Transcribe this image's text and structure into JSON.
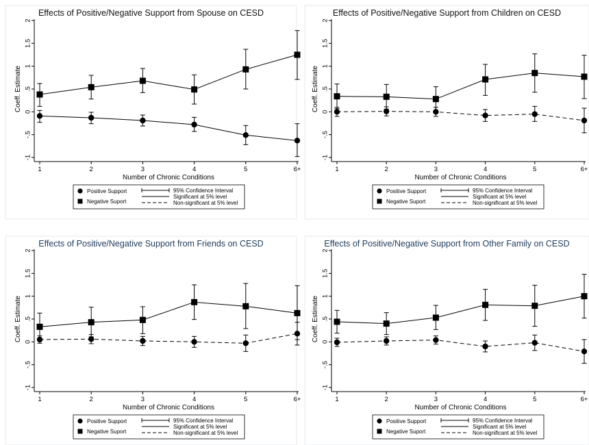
{
  "chart_data": [
    {
      "type": "line",
      "title": "Effects of Positive/Negative Support from Spouse on CESD",
      "title_color": "#111111",
      "xlabel": "Number of Chronic Conditions",
      "ylabel": "Coeff. Estimate",
      "categories": [
        "1",
        "2",
        "3",
        "4",
        "5",
        "6+"
      ],
      "ylim": [
        -1,
        2
      ],
      "yticks": [
        {
          "v": -1,
          "label": "-1"
        },
        {
          "v": -0.5,
          "label": "-.5"
        },
        {
          "v": 0,
          "label": "0"
        },
        {
          "v": 0.5,
          "label": ".5"
        },
        {
          "v": 1,
          "label": "1"
        },
        {
          "v": 1.5,
          "label": "1.5"
        },
        {
          "v": 2,
          "label": "2"
        }
      ],
      "series": [
        {
          "name": "Positive Support",
          "marker": "circle",
          "style": "solid",
          "values": [
            -0.09,
            -0.13,
            -0.19,
            -0.28,
            -0.51,
            -0.63
          ],
          "ci_low": [
            -0.23,
            -0.26,
            -0.31,
            -0.43,
            -0.72,
            -0.98
          ],
          "ci_high": [
            0.03,
            -0.01,
            -0.07,
            -0.12,
            -0.3,
            -0.26
          ]
        },
        {
          "name": "Negative Suport",
          "marker": "square",
          "style": "solid",
          "values": [
            0.38,
            0.54,
            0.68,
            0.49,
            0.93,
            1.25
          ],
          "ci_low": [
            0.12,
            0.28,
            0.42,
            0.17,
            0.5,
            0.71
          ],
          "ci_high": [
            0.62,
            0.8,
            0.95,
            0.81,
            1.37,
            1.78
          ]
        }
      ]
    },
    {
      "type": "line",
      "title": "Effects of Positive/Negative Support from Children on CESD",
      "title_color": "#111111",
      "xlabel": "Number of Chronic Conditions",
      "ylabel": "Coeff. Estimate",
      "categories": [
        "1",
        "2",
        "3",
        "4",
        "5",
        "6+"
      ],
      "ylim": [
        -1,
        2
      ],
      "yticks": [
        {
          "v": -1,
          "label": "-1"
        },
        {
          "v": -0.5,
          "label": "-.5"
        },
        {
          "v": 0,
          "label": "0"
        },
        {
          "v": 0.5,
          "label": ".5"
        },
        {
          "v": 1,
          "label": "1"
        },
        {
          "v": 1.5,
          "label": "1.5"
        },
        {
          "v": 2,
          "label": "2"
        }
      ],
      "series": [
        {
          "name": "Positive Support",
          "marker": "circle",
          "style": "dashed",
          "values": [
            0.0,
            0.01,
            0.0,
            -0.08,
            -0.05,
            -0.19
          ],
          "ci_low": [
            -0.1,
            -0.09,
            -0.1,
            -0.21,
            -0.21,
            -0.46
          ],
          "ci_high": [
            0.1,
            0.11,
            0.1,
            0.05,
            0.12,
            0.08
          ]
        },
        {
          "name": "Negative Suport",
          "marker": "square",
          "style": "solid",
          "values": [
            0.34,
            0.33,
            0.28,
            0.71,
            0.85,
            0.77
          ],
          "ci_low": [
            0.07,
            0.06,
            0.02,
            0.36,
            0.43,
            0.29
          ],
          "ci_high": [
            0.61,
            0.6,
            0.55,
            1.04,
            1.27,
            1.24
          ]
        }
      ]
    },
    {
      "type": "line",
      "title": "Effects of Positive/Negative Support from Friends on CESD",
      "title_color": "#1f3b5c",
      "xlabel": "Number of Chronic Conditions",
      "ylabel": "Coeff. Estimate",
      "categories": [
        "1",
        "2",
        "3",
        "4",
        "5",
        "6+"
      ],
      "ylim": [
        -1,
        2
      ],
      "yticks": [
        {
          "v": -1,
          "label": "-1"
        },
        {
          "v": -0.5,
          "label": "-.5"
        },
        {
          "v": 0,
          "label": "0"
        },
        {
          "v": 0.5,
          "label": ".5"
        },
        {
          "v": 1,
          "label": "1"
        },
        {
          "v": 1.5,
          "label": "1.5"
        },
        {
          "v": 2,
          "label": "2"
        }
      ],
      "series": [
        {
          "name": "Positive Support",
          "marker": "circle",
          "style": "dashed",
          "values": [
            0.05,
            0.06,
            0.02,
            0.0,
            -0.03,
            0.18
          ],
          "ci_low": [
            -0.03,
            -0.04,
            -0.08,
            -0.12,
            -0.21,
            -0.07
          ],
          "ci_high": [
            0.13,
            0.16,
            0.12,
            0.12,
            0.15,
            0.43
          ]
        },
        {
          "name": "Negative Suport",
          "marker": "square",
          "style": "solid",
          "values": [
            0.33,
            0.43,
            0.48,
            0.87,
            0.78,
            0.63
          ],
          "ci_low": [
            0.04,
            0.11,
            0.18,
            0.49,
            0.29,
            0.05
          ],
          "ci_high": [
            0.63,
            0.76,
            0.77,
            1.25,
            1.28,
            1.23
          ]
        }
      ]
    },
    {
      "type": "line",
      "title": "Effects of Positive/Negative Support from Other Family on CESD",
      "title_color": "#1f3b5c",
      "xlabel": "Number of Chronic Conditions",
      "ylabel": "Coeff. Estimate",
      "categories": [
        "1",
        "2",
        "3",
        "4",
        "5",
        "6+"
      ],
      "ylim": [
        -1,
        2
      ],
      "yticks": [
        {
          "v": -1,
          "label": "-1"
        },
        {
          "v": -0.5,
          "label": "-.5"
        },
        {
          "v": 0,
          "label": "0"
        },
        {
          "v": 0.5,
          "label": ".5"
        },
        {
          "v": 1,
          "label": "1"
        },
        {
          "v": 1.5,
          "label": "1.5"
        },
        {
          "v": 2,
          "label": "2"
        }
      ],
      "series": [
        {
          "name": "Positive Support",
          "marker": "circle",
          "style": "dashed",
          "values": [
            -0.01,
            0.02,
            0.04,
            -0.1,
            -0.02,
            -0.21
          ],
          "ci_low": [
            -0.1,
            -0.07,
            -0.05,
            -0.22,
            -0.19,
            -0.47
          ],
          "ci_high": [
            0.08,
            0.11,
            0.13,
            0.02,
            0.15,
            0.05
          ]
        },
        {
          "name": "Negative Suport",
          "marker": "square",
          "style": "solid",
          "values": [
            0.44,
            0.4,
            0.53,
            0.81,
            0.79,
            1.0
          ],
          "ci_low": [
            0.19,
            0.16,
            0.27,
            0.47,
            0.34,
            0.52
          ],
          "ci_high": [
            0.69,
            0.64,
            0.8,
            1.15,
            1.24,
            1.48
          ]
        }
      ]
    }
  ],
  "legend": {
    "positive": "Positive Support",
    "negative": "Negative Suport",
    "ci": "95% Confidence Interval",
    "significant": "Significant at 5% level",
    "nonsignificant": "Non-significant at 5% level"
  }
}
